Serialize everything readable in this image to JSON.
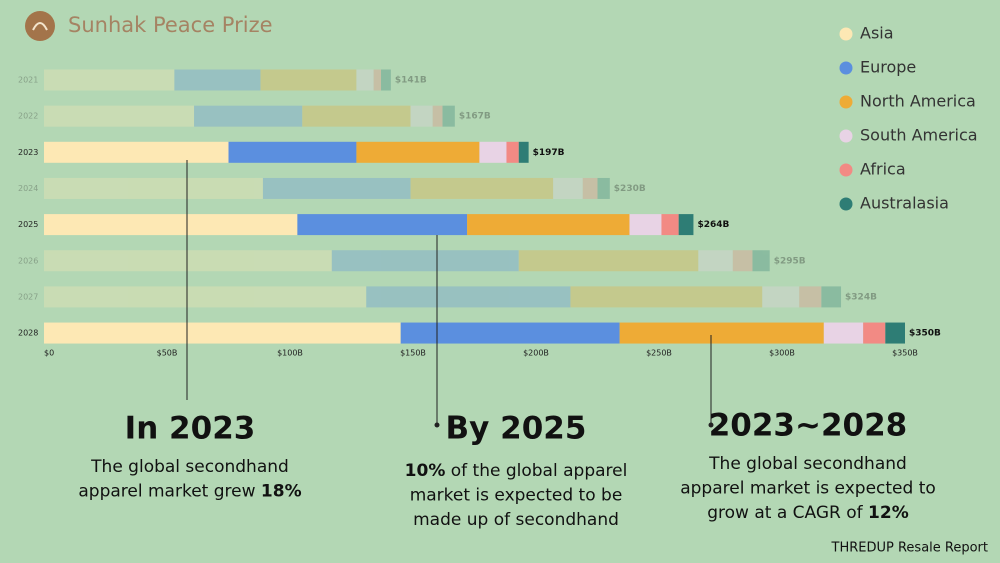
{
  "header": {
    "brand": "Sunhak Peace Prize"
  },
  "chart_data": {
    "type": "bar",
    "orientation": "horizontal",
    "categories": [
      "2021",
      "2022",
      "2023",
      "2024",
      "2025",
      "2026",
      "2027",
      "2028"
    ],
    "highlight": [
      "2023",
      "2025",
      "2028"
    ],
    "series": [
      {
        "name": "Asia",
        "color": "#fde8b4",
        "values": [
          53,
          61,
          75,
          89,
          103,
          117,
          131,
          145
        ]
      },
      {
        "name": "Europe",
        "color": "#5b8fdf",
        "values": [
          35,
          44,
          52,
          60,
          69,
          76,
          83,
          89
        ]
      },
      {
        "name": "North America",
        "color": "#eeab36",
        "values": [
          39,
          44,
          50,
          58,
          66,
          73,
          78,
          83
        ]
      },
      {
        "name": "South America",
        "color": "#e8d3e5",
        "values": [
          7,
          9,
          11,
          12,
          13,
          14,
          15,
          16
        ]
      },
      {
        "name": "Africa",
        "color": "#f28a84",
        "values": [
          3,
          4,
          5,
          6,
          7,
          8,
          9,
          9
        ]
      },
      {
        "name": "Australasia",
        "color": "#2e7d75",
        "values": [
          4,
          5,
          4,
          5,
          6,
          7,
          8,
          8
        ]
      }
    ],
    "totals": [
      141,
      167,
      197,
      230,
      264,
      295,
      324,
      350
    ],
    "total_labels": [
      "$141B",
      "$167B",
      "$197B",
      "$230B",
      "$264B",
      "$295B",
      "$324B",
      "$350B"
    ],
    "xlim": [
      0,
      350
    ],
    "xticks": [
      {
        "value": 0,
        "label": "$0"
      },
      {
        "value": 50,
        "label": "$50B"
      },
      {
        "value": 100,
        "label": "$100B"
      },
      {
        "value": 150,
        "label": "$150B"
      },
      {
        "value": 200,
        "label": "$200B"
      },
      {
        "value": 250,
        "label": "$250B"
      },
      {
        "value": 300,
        "label": "$300B"
      },
      {
        "value": 350,
        "label": "$350B"
      }
    ],
    "legend": "top-right"
  },
  "callouts": [
    {
      "title": "In 2023",
      "lines": [
        [
          {
            "text": "The global secondhand",
            "bold": false
          }
        ],
        [
          {
            "text": "apparel market grew ",
            "bold": false
          },
          {
            "text": "18%",
            "bold": true
          }
        ]
      ]
    },
    {
      "title": "By 2025",
      "lines": [
        [
          {
            "text": "10%",
            "bold": true
          },
          {
            "text": " of the global apparel",
            "bold": false
          }
        ],
        [
          {
            "text": "market is expected to be",
            "bold": false
          }
        ],
        [
          {
            "text": "made up of secondhand",
            "bold": false
          }
        ]
      ]
    },
    {
      "title": "2023~2028",
      "lines": [
        [
          {
            "text": "The global secondhand",
            "bold": false
          }
        ],
        [
          {
            "text": "apparel market is expected to",
            "bold": false
          }
        ],
        [
          {
            "text": "grow at a CAGR of ",
            "bold": false
          },
          {
            "text": "12%",
            "bold": true
          }
        ]
      ]
    }
  ],
  "source": "THREDUP Resale Report"
}
